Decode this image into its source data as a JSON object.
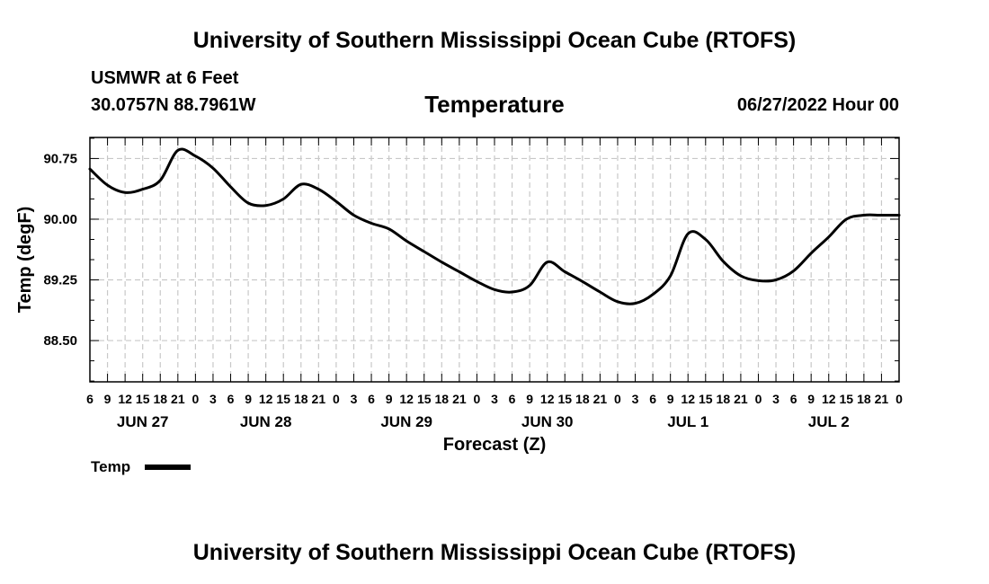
{
  "header": {
    "title": "University of Southern Mississippi Ocean Cube (RTOFS)",
    "station": "USMWR at 6 Feet",
    "coords": "30.0757N  88.7961W",
    "variable": "Temperature",
    "datetime": "06/27/2022 Hour 00"
  },
  "footer": {
    "title": "University of Southern Mississippi Ocean Cube (RTOFS)"
  },
  "legend": {
    "label": "Temp"
  },
  "chart_data": {
    "type": "line",
    "title": "Temperature",
    "xlabel": "Forecast (Z)",
    "ylabel": "Temp (degF)",
    "ylim": [
      87.99,
      91.01
    ],
    "yticks": [
      "90.75",
      "90.00",
      "89.25",
      "88.50"
    ],
    "ytick_values": [
      90.75,
      90.0,
      89.25,
      88.5
    ],
    "x_unit": "forecast hour (from JUN 27 06Z)",
    "xlim": [
      0,
      138
    ],
    "xtick_labels": [
      "6",
      "9",
      "12",
      "15",
      "18",
      "21",
      "0",
      "3",
      "6",
      "9",
      "12",
      "15",
      "18",
      "21",
      "0",
      "3",
      "6",
      "9",
      "12",
      "15",
      "18",
      "21",
      "0",
      "3",
      "6",
      "9",
      "12",
      "15",
      "18",
      "21",
      "0",
      "3",
      "6",
      "9",
      "12",
      "15",
      "18",
      "21",
      "0",
      "3",
      "6",
      "9",
      "12",
      "15",
      "18",
      "21",
      "0"
    ],
    "day_labels": [
      {
        "label": "JUN 27",
        "hour": 9
      },
      {
        "label": "JUN 28",
        "hour": 30
      },
      {
        "label": "JUN 29",
        "hour": 54
      },
      {
        "label": "JUN 30",
        "hour": 78
      },
      {
        "label": "JUL 1",
        "hour": 102
      },
      {
        "label": "JUL 2",
        "hour": 126
      }
    ],
    "grid": true,
    "series": [
      {
        "name": "Temp",
        "color": "#000000",
        "x": [
          0,
          3,
          6,
          9,
          12,
          15,
          18,
          21,
          24,
          27,
          30,
          33,
          36,
          39,
          42,
          45,
          48,
          51,
          54,
          57,
          60,
          63,
          66,
          69,
          72,
          75,
          78,
          81,
          84,
          87,
          90,
          93,
          96,
          99,
          102,
          105,
          108,
          111,
          114,
          117,
          120,
          123,
          126,
          129,
          132,
          135,
          138
        ],
        "y": [
          90.62,
          90.42,
          90.33,
          90.37,
          90.48,
          90.85,
          90.78,
          90.63,
          90.4,
          90.2,
          90.17,
          90.25,
          90.43,
          90.37,
          90.22,
          90.05,
          89.95,
          89.88,
          89.73,
          89.6,
          89.47,
          89.35,
          89.23,
          89.13,
          89.1,
          89.18,
          89.47,
          89.35,
          89.23,
          89.1,
          88.98,
          88.96,
          89.07,
          89.3,
          89.82,
          89.75,
          89.48,
          89.3,
          89.24,
          89.25,
          89.36,
          89.58,
          89.78,
          90.0,
          90.05,
          90.05,
          90.05
        ]
      }
    ]
  }
}
